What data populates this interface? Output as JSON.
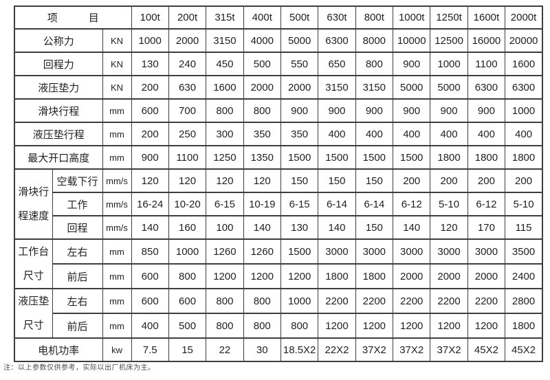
{
  "table": {
    "header": {
      "item_label": "项　　　目",
      "columns": [
        "100t",
        "200t",
        "315t",
        "400t",
        "500t",
        "630t",
        "800t",
        "1000t",
        "1250t",
        "1600t",
        "2000t"
      ]
    },
    "rows": [
      {
        "label": "公称力",
        "unit": "KN",
        "values": [
          "1000",
          "2000",
          "3150",
          "4000",
          "5000",
          "6300",
          "8000",
          "10000",
          "12500",
          "16000",
          "20000"
        ]
      },
      {
        "label": "回程力",
        "unit": "KN",
        "values": [
          "130",
          "240",
          "450",
          "500",
          "550",
          "650",
          "800",
          "900",
          "1000",
          "1100",
          "1600"
        ]
      },
      {
        "label": "液压垫力",
        "unit": "KN",
        "values": [
          "200",
          "630",
          "1600",
          "2000",
          "2000",
          "3150",
          "3150",
          "5000",
          "5000",
          "6300",
          "6300"
        ]
      },
      {
        "label": "滑块行程",
        "unit": "mm",
        "values": [
          "600",
          "700",
          "800",
          "800",
          "900",
          "900",
          "900",
          "900",
          "900",
          "900",
          "1000"
        ]
      },
      {
        "label": "液压垫行程",
        "unit": "mm",
        "values": [
          "200",
          "250",
          "300",
          "350",
          "350",
          "400",
          "400",
          "400",
          "400",
          "400",
          "400"
        ]
      },
      {
        "label": "最大开口高度",
        "unit": "mm",
        "values": [
          "900",
          "1100",
          "1250",
          "1350",
          "1500",
          "1500",
          "1500",
          "1500",
          "1800",
          "1800",
          "1800"
        ]
      },
      {
        "group": "滑块行程速度",
        "group_span": 3,
        "label": "空载下行",
        "unit": "mm/s",
        "values": [
          "120",
          "120",
          "120",
          "120",
          "150",
          "150",
          "150",
          "200",
          "200",
          "200",
          "200"
        ]
      },
      {
        "label": "工作",
        "unit": "mm/s",
        "values": [
          "16-24",
          "10-20",
          "6-15",
          "10-19",
          "6-15",
          "6-14",
          "6-14",
          "6-12",
          "5-10",
          "6-12",
          "5-10"
        ]
      },
      {
        "label": "回程",
        "unit": "mm/s",
        "values": [
          "140",
          "160",
          "100",
          "140",
          "130",
          "140",
          "150",
          "140",
          "120",
          "170",
          "115"
        ]
      },
      {
        "group": "工作台尺寸",
        "group_span": 2,
        "label": "左右",
        "unit": "mm",
        "values": [
          "850",
          "1000",
          "1260",
          "1260",
          "1500",
          "3000",
          "3000",
          "3000",
          "3000",
          "3000",
          "3500"
        ]
      },
      {
        "label": "前后",
        "unit": "mm",
        "values": [
          "600",
          "800",
          "1200",
          "1200",
          "1200",
          "1800",
          "1800",
          "2000",
          "2000",
          "2000",
          "2400"
        ]
      },
      {
        "group": "液压垫尺寸",
        "group_span": 2,
        "label": "左右",
        "unit": "mm",
        "values": [
          "600",
          "600",
          "800",
          "800",
          "1000",
          "2200",
          "2200",
          "2200",
          "2200",
          "2200",
          "2800"
        ]
      },
      {
        "label": "前后",
        "unit": "mm",
        "values": [
          "400",
          "500",
          "800",
          "800",
          "800",
          "1200",
          "1200",
          "1200",
          "1200",
          "1200",
          "1800"
        ]
      },
      {
        "label": "电机功率",
        "unit": "kw",
        "values": [
          "7.5",
          "15",
          "22",
          "30",
          "18.5X2",
          "22X2",
          "37X2",
          "37X2",
          "37X2",
          "45X2",
          "45X2"
        ]
      }
    ],
    "note": "注：以上参数仅供参考，实际以出厂机床为主。"
  },
  "colors": {
    "border": "#3d3d3d",
    "text": "#1f1f1f",
    "note_text": "#4a4a4a",
    "background": "#ffffff"
  }
}
